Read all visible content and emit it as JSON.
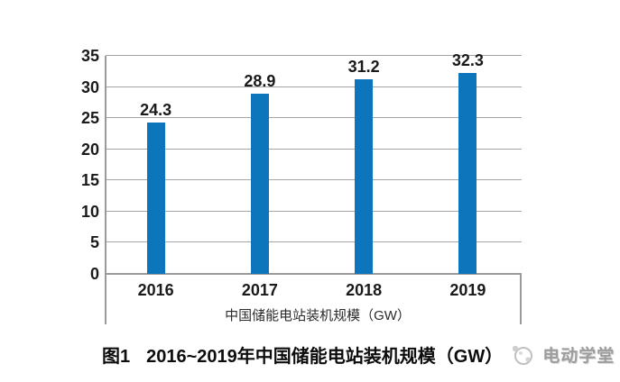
{
  "chart_data": {
    "type": "bar",
    "title": "",
    "categories": [
      "2016",
      "2017",
      "2018",
      "2019"
    ],
    "values": [
      24.3,
      28.9,
      31.2,
      32.3
    ],
    "data_labels": [
      "24.3",
      "28.9",
      "31.2",
      "32.3"
    ],
    "legend": "中国储能电站装机规模（GW）",
    "legend_position": "bottom",
    "xlabel": "",
    "ylabel": "",
    "ylim": [
      0,
      35
    ],
    "yticks": [
      0,
      5,
      10,
      15,
      20,
      25,
      30,
      35
    ],
    "grid": "horizontal",
    "bar_color": "#0d75bc",
    "gridline_color": "#a6a6a6",
    "axis_color": "#9a9a9a"
  },
  "caption": {
    "figure_label": "图1",
    "title": "2016~2019年中国储能电站装机规模（GW）"
  },
  "watermark": {
    "text": "电动学堂",
    "icon": "globe-sketch-icon",
    "color": "#9d9d9d"
  }
}
